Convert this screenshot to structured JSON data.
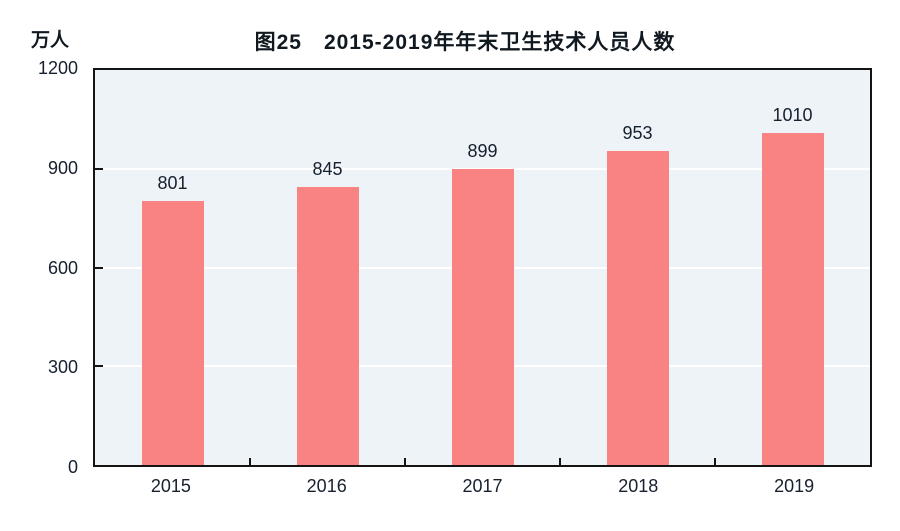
{
  "title": "图25　2015-2019年年末卫生技术人员人数",
  "chart_data": {
    "type": "bar",
    "title": "图25　2015-2019年年末卫生技术人员人数",
    "categories": [
      "2015",
      "2016",
      "2017",
      "2018",
      "2019"
    ],
    "values": [
      801,
      845,
      899,
      953,
      1010
    ],
    "xlabel": "",
    "ylabel": "万人",
    "ylim": [
      0,
      1200
    ],
    "yticks": [
      0,
      300,
      600,
      900,
      1200
    ],
    "grid": "horizontal",
    "legend_position": "none",
    "bar_color": "#f98282",
    "plot_bg_color": "#edf3f7",
    "gridline_color": "#ffffff",
    "axis_color": "#141414",
    "text_color": "#16202e"
  }
}
